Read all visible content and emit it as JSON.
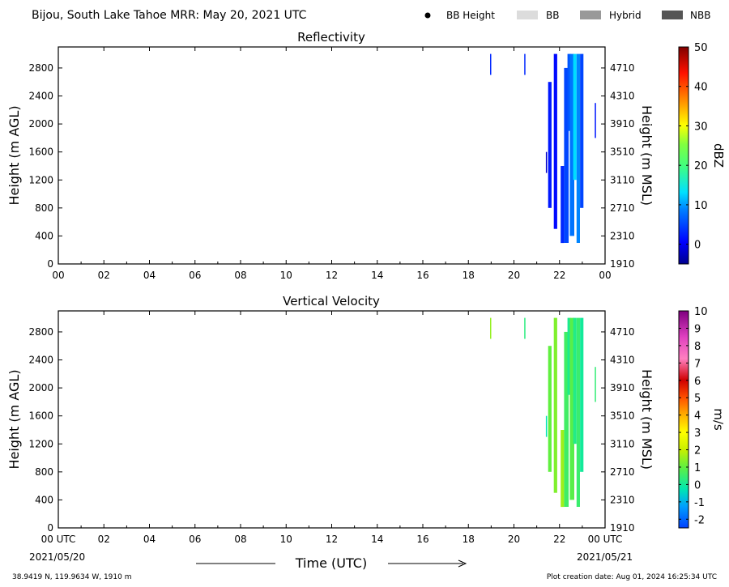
{
  "header": {
    "title": "Bijou, South Lake Tahoe MRR:  May 20, 2021 UTC",
    "legend": [
      {
        "label": "BB Height",
        "kind": "dot",
        "color": "#000000"
      },
      {
        "label": "BB",
        "kind": "box",
        "color": "#dcdcdc"
      },
      {
        "label": "Hybrid",
        "kind": "box",
        "color": "#999999"
      },
      {
        "label": "NBB",
        "kind": "box",
        "color": "#555555"
      }
    ]
  },
  "footer": {
    "coords": "38.9419 N, 119.9634 W, 1910 m",
    "created": "Plot creation date: Aug 01, 2024 16:25:34 UTC",
    "time_label": "Time (UTC)",
    "start_date": "2021/05/20",
    "end_date": "2021/05/21"
  },
  "chart_data": [
    {
      "type": "heatmap",
      "title": "Reflectivity",
      "xlabel": "",
      "ylabel": "Height (m AGL)",
      "ylabel_right": "Height (m MSL)",
      "xlim": [
        0,
        24
      ],
      "ylim": [
        0,
        3100
      ],
      "xticks": [
        "00",
        "02",
        "04",
        "06",
        "08",
        "10",
        "12",
        "14",
        "16",
        "18",
        "20",
        "22",
        "00"
      ],
      "yticks": [
        0,
        400,
        800,
        1200,
        1600,
        2000,
        2400,
        2800
      ],
      "yticks_right": [
        "1910",
        "2310",
        "2710",
        "3110",
        "3510",
        "3910",
        "4310",
        "4710"
      ],
      "colorbar": {
        "label": "dBZ",
        "range": [
          -5,
          50
        ],
        "ticks": [
          0,
          10,
          20,
          30,
          40,
          50
        ]
      },
      "grid": false,
      "echoes": [
        {
          "t0": 18.95,
          "t1": 19.0,
          "h0": 2700,
          "h1": 3000,
          "value": 3
        },
        {
          "t0": 20.45,
          "t1": 20.5,
          "h0": 2700,
          "h1": 3000,
          "value": 3
        },
        {
          "t0": 21.4,
          "t1": 21.45,
          "h0": 1300,
          "h1": 1600,
          "value": -2
        },
        {
          "t0": 21.5,
          "t1": 21.65,
          "h0": 800,
          "h1": 2600,
          "value": 2
        },
        {
          "t0": 21.75,
          "t1": 21.9,
          "h0": 500,
          "h1": 3000,
          "value": 1
        },
        {
          "t0": 22.05,
          "t1": 22.2,
          "h0": 300,
          "h1": 1400,
          "value": 3
        },
        {
          "t0": 22.2,
          "t1": 22.4,
          "h0": 300,
          "h1": 2800,
          "value": 5
        },
        {
          "t0": 22.35,
          "t1": 22.5,
          "h0": 1900,
          "h1": 3000,
          "value": 6
        },
        {
          "t0": 22.45,
          "t1": 22.65,
          "h0": 400,
          "h1": 3000,
          "value": 8
        },
        {
          "t0": 22.6,
          "t1": 22.75,
          "h0": 1200,
          "h1": 3000,
          "value": 13
        },
        {
          "t0": 22.75,
          "t1": 22.9,
          "h0": 300,
          "h1": 3000,
          "value": 9
        },
        {
          "t0": 22.9,
          "t1": 23.05,
          "h0": 800,
          "h1": 3000,
          "value": 5
        },
        {
          "t0": 23.55,
          "t1": 23.6,
          "h0": 1800,
          "h1": 2300,
          "value": 2
        }
      ]
    },
    {
      "type": "heatmap",
      "title": "Vertical Velocity",
      "xlabel": "Time (UTC)",
      "ylabel": "Height (m AGL)",
      "ylabel_right": "Height (m MSL)",
      "xlim": [
        0,
        24
      ],
      "ylim": [
        0,
        3100
      ],
      "xticks": [
        "00 UTC",
        "02",
        "04",
        "06",
        "08",
        "10",
        "12",
        "14",
        "16",
        "18",
        "20",
        "22",
        "00 UTC"
      ],
      "yticks": [
        0,
        400,
        800,
        1200,
        1600,
        2000,
        2400,
        2800
      ],
      "yticks_right": [
        "1910",
        "2310",
        "2710",
        "3110",
        "3510",
        "3910",
        "4310",
        "4710"
      ],
      "colorbar": {
        "label": "m/s",
        "range": [
          -2.5,
          10
        ],
        "ticks": [
          -2,
          -1,
          0,
          1,
          2,
          3,
          4,
          5,
          6,
          7,
          8,
          9,
          10
        ]
      },
      "grid": false,
      "echoes": [
        {
          "t0": 18.95,
          "t1": 19.0,
          "h0": 2700,
          "h1": 3000,
          "value": 1.5
        },
        {
          "t0": 20.45,
          "t1": 20.5,
          "h0": 2700,
          "h1": 3000,
          "value": 0.3
        },
        {
          "t0": 21.4,
          "t1": 21.45,
          "h0": 1300,
          "h1": 1600,
          "value": -0.3
        },
        {
          "t0": 21.5,
          "t1": 21.65,
          "h0": 800,
          "h1": 2600,
          "value": 1.0
        },
        {
          "t0": 21.75,
          "t1": 21.9,
          "h0": 500,
          "h1": 3000,
          "value": 1.3
        },
        {
          "t0": 22.05,
          "t1": 22.2,
          "h0": 300,
          "h1": 1400,
          "value": 1.6
        },
        {
          "t0": 22.2,
          "t1": 22.4,
          "h0": 300,
          "h1": 2800,
          "value": 0.6
        },
        {
          "t0": 22.35,
          "t1": 22.5,
          "h0": 1900,
          "h1": 3000,
          "value": 0.1
        },
        {
          "t0": 22.45,
          "t1": 22.65,
          "h0": 400,
          "h1": 3000,
          "value": 0.9
        },
        {
          "t0": 22.6,
          "t1": 22.75,
          "h0": 1200,
          "h1": 3000,
          "value": 0.2
        },
        {
          "t0": 22.75,
          "t1": 22.9,
          "h0": 300,
          "h1": 3000,
          "value": 0.5
        },
        {
          "t0": 22.9,
          "t1": 23.05,
          "h0": 800,
          "h1": 3000,
          "value": 0.0
        },
        {
          "t0": 23.55,
          "t1": 23.6,
          "h0": 1800,
          "h1": 2300,
          "value": 0.4
        }
      ]
    }
  ]
}
